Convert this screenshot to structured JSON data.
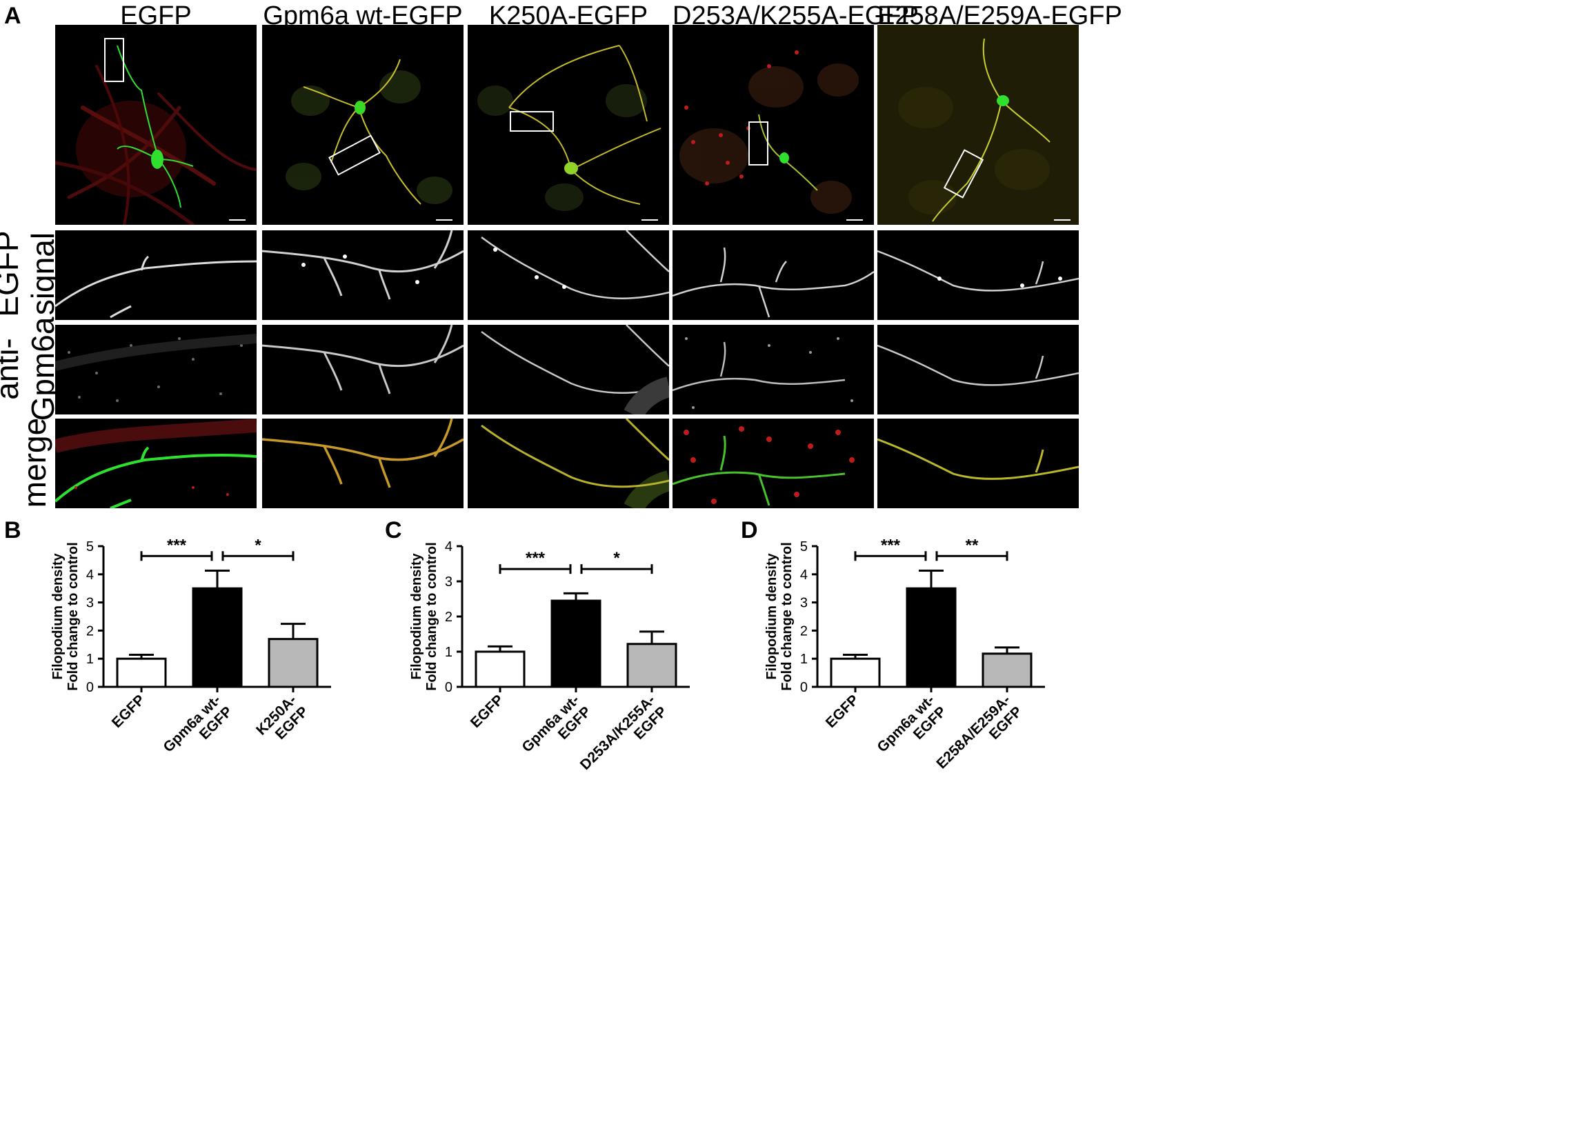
{
  "panel_a": {
    "letter": "A",
    "columns": [
      "EGFP",
      "Gpm6a wt-EGFP",
      "K250A-EGFP",
      "D253A/K255A-EGFP",
      "E258A/E259A-EGFP"
    ],
    "rows": [
      {
        "line1": "EGFP",
        "line2": "signal"
      },
      {
        "line1": "anti-",
        "line2": "Gpm6a"
      },
      {
        "line1": "merge",
        "line2": ""
      }
    ]
  },
  "colors": {
    "egfp_green": "#2fe02f",
    "gpm6a_red": "#c01a1a",
    "overlap_yellow": "#d8d020",
    "bar_control": "#ffffff",
    "bar_wt": "#000000",
    "bar_mutant": "#b8b8b8"
  },
  "chart_data": [
    {
      "panel": "B",
      "type": "bar",
      "ylabel_line1": "Filopodium density",
      "ylabel_line2": "Fold change to control",
      "ylim": [
        0,
        5
      ],
      "yticks": [
        "0",
        "1",
        "2",
        "3",
        "4",
        "5"
      ],
      "categories": [
        [
          "EGFP"
        ],
        [
          "Gpm6a wt-",
          "EGFP"
        ],
        [
          "K250A-",
          "EGFP"
        ]
      ],
      "values": [
        1.0,
        3.5,
        1.7
      ],
      "errors": [
        0.14,
        0.63,
        0.54
      ],
      "significance": [
        {
          "from": 0,
          "to": 1,
          "label": "***",
          "y": 4.65
        },
        {
          "from": 1,
          "to": 2,
          "label": "*",
          "y": 4.65
        }
      ]
    },
    {
      "panel": "C",
      "type": "bar",
      "ylabel_line1": "Filopodium density",
      "ylabel_line2": "Fold change to control",
      "ylim": [
        0,
        4
      ],
      "yticks": [
        "0",
        "1",
        "2",
        "3",
        "4"
      ],
      "categories": [
        [
          "EGFP"
        ],
        [
          "Gpm6a wt-",
          "EGFP"
        ],
        [
          "D253A/K255A-",
          "EGFP"
        ]
      ],
      "values": [
        1.0,
        2.45,
        1.22
      ],
      "errors": [
        0.15,
        0.21,
        0.35
      ],
      "significance": [
        {
          "from": 0,
          "to": 1,
          "label": "***",
          "y": 3.35
        },
        {
          "from": 1,
          "to": 2,
          "label": "*",
          "y": 3.35
        }
      ]
    },
    {
      "panel": "D",
      "type": "bar",
      "ylabel_line1": "Filopodium density",
      "ylabel_line2": "Fold change to control",
      "ylim": [
        0,
        5
      ],
      "yticks": [
        "0",
        "1",
        "2",
        "3",
        "4",
        "5"
      ],
      "categories": [
        [
          "EGFP"
        ],
        [
          "Gpm6a wt-",
          "EGFP"
        ],
        [
          "E258A/E259A-",
          "EGFP"
        ]
      ],
      "values": [
        1.0,
        3.5,
        1.18
      ],
      "errors": [
        0.14,
        0.63,
        0.22
      ],
      "significance": [
        {
          "from": 0,
          "to": 1,
          "label": "***",
          "y": 4.65
        },
        {
          "from": 1,
          "to": 2,
          "label": "**",
          "y": 4.65
        }
      ]
    }
  ]
}
